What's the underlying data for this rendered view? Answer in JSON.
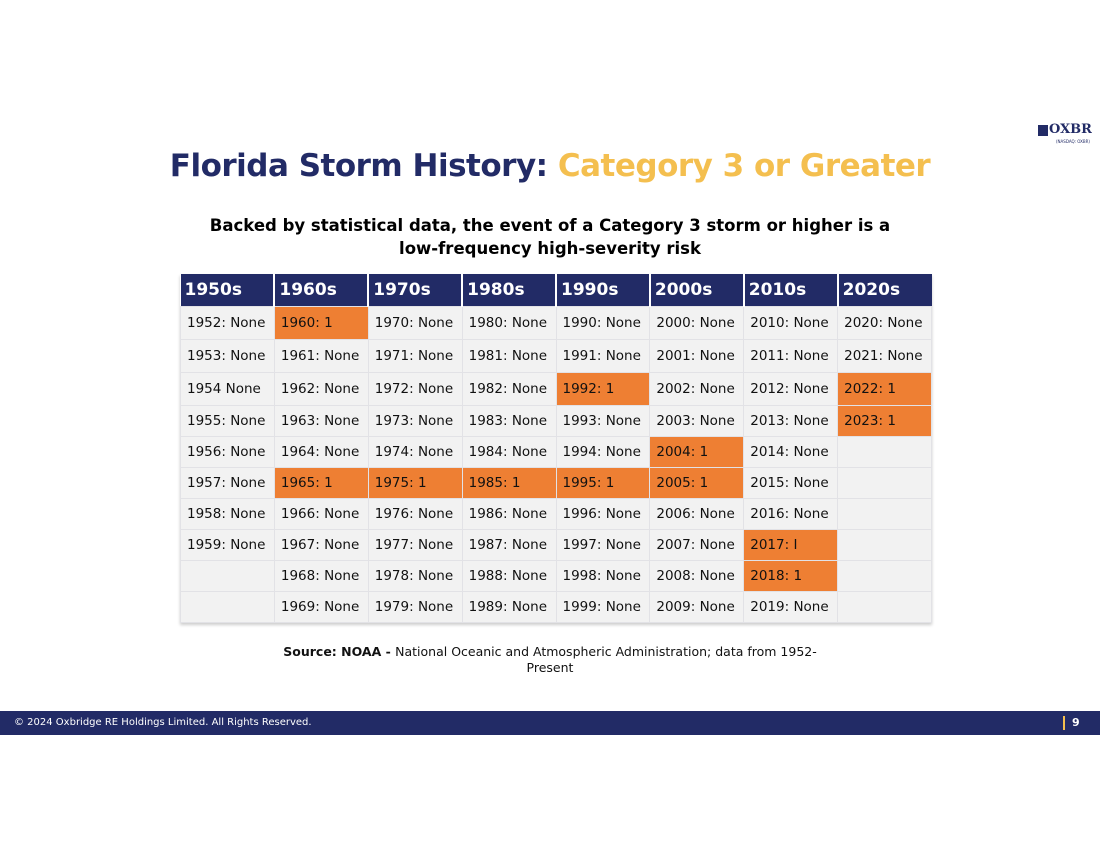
{
  "logo": {
    "name": "OXBR",
    "ticker": "(NASDAQ: OXBR)"
  },
  "title": {
    "main": "Florida Storm History: ",
    "accent": "Category 3 or Greater"
  },
  "subtitle": "Backed by statistical data, the event of a Category 3 storm or higher is a low-frequency high-severity risk",
  "table": {
    "headers": [
      "1950s",
      "1960s",
      "1970s",
      "1980s",
      "1990s",
      "2000s",
      "2010s",
      "2020s"
    ],
    "rows": [
      [
        {
          "t": "1952: None"
        },
        {
          "t": "1960: 1",
          "hl": true
        },
        {
          "t": "1970: None"
        },
        {
          "t": "1980: None"
        },
        {
          "t": "1990: None"
        },
        {
          "t": "2000: None"
        },
        {
          "t": "2010: None"
        },
        {
          "t": "2020: None"
        }
      ],
      [
        {
          "t": "1953: None"
        },
        {
          "t": "1961: None"
        },
        {
          "t": "1971: None"
        },
        {
          "t": "1981: None"
        },
        {
          "t": "1991: None"
        },
        {
          "t": "2001: None"
        },
        {
          "t": "2011: None"
        },
        {
          "t": "2021: None"
        }
      ],
      [
        {
          "t": "1954 None"
        },
        {
          "t": "1962: None"
        },
        {
          "t": "1972: None"
        },
        {
          "t": "1982: None"
        },
        {
          "t": "1992: 1",
          "hl": true
        },
        {
          "t": "2002: None"
        },
        {
          "t": "2012: None"
        },
        {
          "t": "2022: 1",
          "hl": true
        }
      ],
      [
        {
          "t": "1955: None"
        },
        {
          "t": "1963: None"
        },
        {
          "t": "1973: None"
        },
        {
          "t": "1983: None"
        },
        {
          "t": "1993: None"
        },
        {
          "t": "2003: None"
        },
        {
          "t": "2013: None"
        },
        {
          "t": "2023: 1",
          "hl": true
        }
      ],
      [
        {
          "t": "1956: None"
        },
        {
          "t": "1964: None"
        },
        {
          "t": "1974: None"
        },
        {
          "t": "1984: None"
        },
        {
          "t": "1994: None"
        },
        {
          "t": "2004: 1",
          "hl": true
        },
        {
          "t": "2014: None"
        },
        {
          "t": ""
        }
      ],
      [
        {
          "t": "1957: None"
        },
        {
          "t": "1965: 1",
          "hl": true
        },
        {
          "t": "1975: 1",
          "hl": true
        },
        {
          "t": "1985: 1",
          "hl": true
        },
        {
          "t": "1995: 1",
          "hl": true
        },
        {
          "t": "2005: 1",
          "hl": true
        },
        {
          "t": "2015: None"
        },
        {
          "t": ""
        }
      ],
      [
        {
          "t": "1958: None"
        },
        {
          "t": "1966: None"
        },
        {
          "t": "1976: None"
        },
        {
          "t": "1986: None"
        },
        {
          "t": "1996: None"
        },
        {
          "t": "2006: None"
        },
        {
          "t": "2016: None"
        },
        {
          "t": ""
        }
      ],
      [
        {
          "t": "1959: None"
        },
        {
          "t": "1967: None"
        },
        {
          "t": "1977: None"
        },
        {
          "t": "1987: None"
        },
        {
          "t": "1997: None"
        },
        {
          "t": "2007: None"
        },
        {
          "t": "2017: I",
          "hl": true
        },
        {
          "t": ""
        }
      ],
      [
        {
          "t": ""
        },
        {
          "t": "1968: None"
        },
        {
          "t": "1978: None"
        },
        {
          "t": "1988: None"
        },
        {
          "t": "1998: None"
        },
        {
          "t": "2008: None"
        },
        {
          "t": "2018: 1",
          "hl": true
        },
        {
          "t": ""
        }
      ],
      [
        {
          "t": ""
        },
        {
          "t": "1969: None"
        },
        {
          "t": "1979: None"
        },
        {
          "t": "1989: None"
        },
        {
          "t": "1999: None"
        },
        {
          "t": "2009: None"
        },
        {
          "t": "2019: None"
        },
        {
          "t": ""
        }
      ]
    ]
  },
  "source": {
    "label": "Source: NOAA - ",
    "text": "National Oceanic and Atmospheric Administration; data from 1952-Present"
  },
  "footer": {
    "copyright": "© 2024 Oxbridge RE Holdings Limited. All Rights Reserved.",
    "page": "9"
  },
  "colors": {
    "navy": "#222b66",
    "gold": "#f4bf4f",
    "highlight": "#ee7f33"
  }
}
